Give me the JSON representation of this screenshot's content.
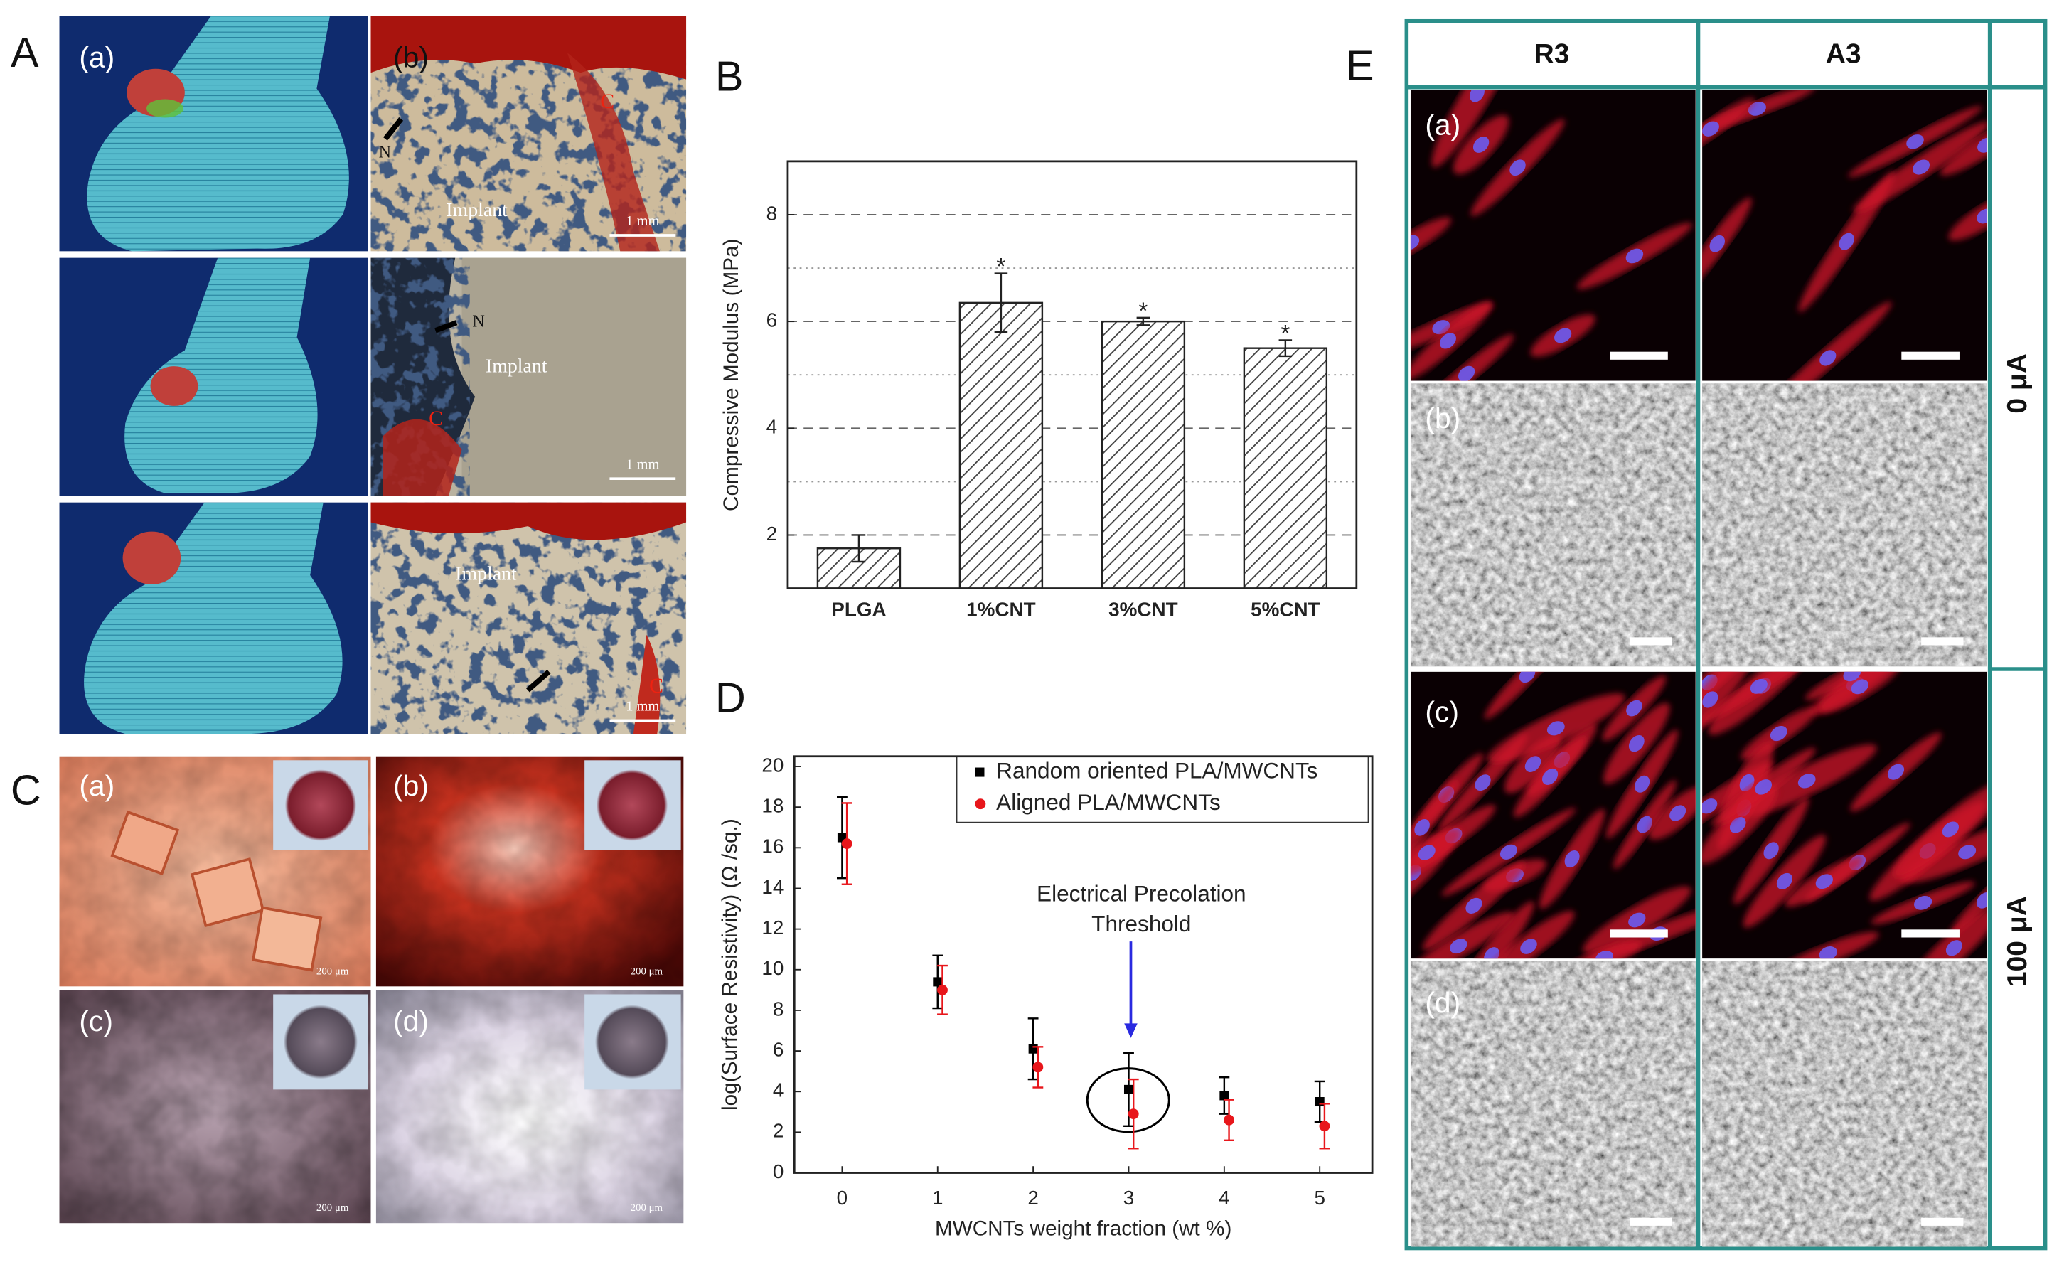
{
  "panel_labels": [
    "A",
    "B",
    "C",
    "D",
    "E"
  ],
  "panel_a": {
    "sublabels": [
      "(a)",
      "(b)"
    ],
    "n": "N",
    "c": "C",
    "implant": "Implant",
    "scale": "1 mm"
  },
  "panel_c": {
    "sublabels": [
      "(a)",
      "(b)",
      "(c)",
      "(d)"
    ],
    "scale": "200 μm"
  },
  "panel_e": {
    "columns": [
      "R3",
      "A3"
    ],
    "rows": [
      "(a)",
      "(b)",
      "(c)",
      "(d)"
    ],
    "conditions": [
      "0 μA",
      "100 μA"
    ]
  },
  "chart_data": [
    {
      "type": "bar",
      "ylabel": "Compressive Modulus (MPa)",
      "categories": [
        "PLGA",
        "1%CNT",
        "3%CNT",
        "5%CNT"
      ],
      "values": [
        1.75,
        6.35,
        6.0,
        5.5
      ],
      "errors": [
        0.25,
        0.55,
        0.07,
        0.15
      ],
      "annotations": [
        null,
        "*",
        "*",
        "*"
      ],
      "color": "#444444",
      "ylim": [
        1,
        9
      ],
      "yticks": [
        2,
        4,
        6,
        8
      ],
      "minor_yticks": [
        3,
        5,
        7
      ],
      "grid": true
    },
    {
      "type": "scatter",
      "xlabel": "MWCNTs weight fraction (wt %)",
      "ylabel": "log(Surface Resistivity) (Ω /sq.)",
      "annotation": [
        "Electrical Precolation",
        "Threshold"
      ],
      "legend": "upper right",
      "xlim": [
        -0.5,
        5.55
      ],
      "xticks": [
        0,
        1,
        2,
        3,
        4,
        5
      ],
      "ylim": [
        0,
        20.5
      ],
      "yticks": [
        0,
        2,
        4,
        6,
        8,
        10,
        12,
        14,
        16,
        18,
        20
      ],
      "series": [
        {
          "name": "Random oriented PLA/MWCNTs",
          "color": "#000000",
          "marker": "square",
          "x": [
            0,
            1,
            2,
            3,
            4,
            5
          ],
          "values": [
            16.5,
            9.4,
            6.1,
            4.1,
            3.8,
            3.5
          ],
          "errors": [
            2.0,
            1.3,
            1.5,
            1.8,
            0.9,
            1.0
          ]
        },
        {
          "name": "Aligned PLA/MWCNTs",
          "color": "#e8161b",
          "marker": "circle",
          "x": [
            0.05,
            1.05,
            2.05,
            3.05,
            4.05,
            5.05
          ],
          "values": [
            16.2,
            9.0,
            5.2,
            2.9,
            2.6,
            2.3
          ],
          "errors": [
            2.0,
            1.2,
            1.0,
            1.7,
            1.0,
            1.1
          ]
        }
      ]
    }
  ]
}
